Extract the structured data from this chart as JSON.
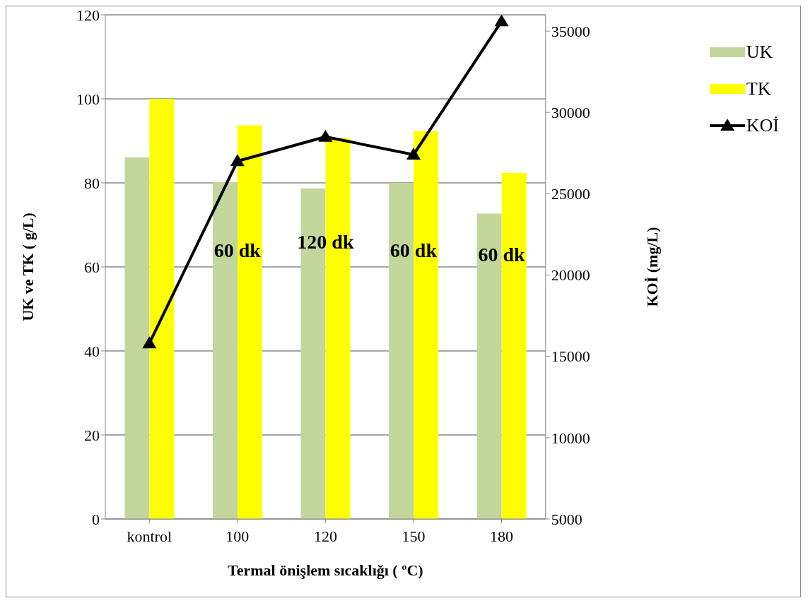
{
  "chart_data": {
    "type": "bar",
    "xlabel": "Termal önişlem sıcaklığı ( ºC)",
    "ylabel": "UK ve TK ( g/L)",
    "y2label": "KOİ (mg/L)",
    "categories": [
      "kontrol",
      "100",
      "120",
      "150",
      "180"
    ],
    "series": [
      {
        "name": "UK",
        "color": "#c3d69b",
        "values": [
          86.1,
          80.2,
          78.7,
          80.0,
          72.7
        ]
      },
      {
        "name": "TK",
        "color": "#ffff00",
        "values": [
          100,
          93.7,
          90.7,
          92.3,
          82.4
        ]
      },
      {
        "name": "KOİ",
        "type": "line",
        "axis": "y2",
        "color": "#000000",
        "marker": "triangle",
        "values": [
          15800,
          27000,
          28500,
          27400,
          35600
        ]
      }
    ],
    "ylim": [
      0,
      120
    ],
    "yticks": [
      0,
      20,
      40,
      60,
      80,
      100,
      120
    ],
    "y2lim": [
      5000,
      36000
    ],
    "y2ticks": [
      5000,
      10000,
      15000,
      20000,
      25000,
      30000,
      35000
    ],
    "grid": "y",
    "legend": "top right",
    "annotations": [
      {
        "text": "60 dk",
        "x": "100",
        "y": 64
      },
      {
        "text": "120 dk",
        "x": "120",
        "y": 66
      },
      {
        "text": "60 dk",
        "x": "150",
        "y": 64
      },
      {
        "text": "60 dk",
        "x": "180",
        "y": 63
      }
    ]
  }
}
